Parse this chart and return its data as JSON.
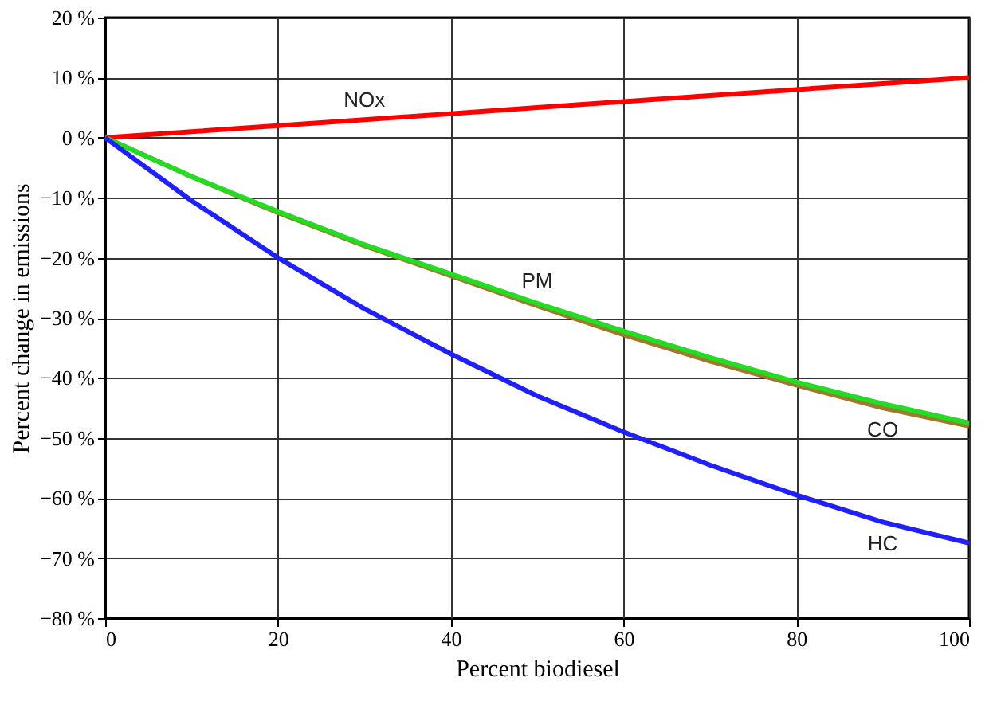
{
  "chart_data": {
    "type": "line",
    "xlabel": "Percent biodiesel",
    "ylabel": "Percent change in emissions",
    "x": [
      0,
      10,
      20,
      30,
      40,
      50,
      60,
      70,
      80,
      90,
      100
    ],
    "series": [
      {
        "name": "NOx",
        "color": "#ff0000",
        "values": [
          0,
          1,
          2,
          3,
          4,
          5,
          6,
          7,
          8,
          9,
          10
        ]
      },
      {
        "name": "CO",
        "color": "#a07830",
        "values": [
          0,
          -6.5,
          -12.5,
          -18,
          -23,
          -28,
          -32.8,
          -37.2,
          -41.2,
          -45,
          -48
        ]
      },
      {
        "name": "PM",
        "color": "#22dd22",
        "values": [
          0,
          -6.5,
          -12.3,
          -17.8,
          -22.7,
          -27.6,
          -32.2,
          -36.6,
          -40.7,
          -44.3,
          -47.5
        ]
      },
      {
        "name": "HC",
        "color": "#2020ff",
        "values": [
          0,
          -10.5,
          -20,
          -28.5,
          -36,
          -43,
          -49,
          -54.5,
          -59.5,
          -64,
          -67.5
        ]
      }
    ],
    "xlim": [
      0,
      100
    ],
    "xticks": [
      0,
      20,
      40,
      60,
      80,
      100
    ],
    "ylim": [
      -80,
      20
    ],
    "yticks": [
      {
        "value": 20,
        "label": "20 %"
      },
      {
        "value": 10,
        "label": "10 %"
      },
      {
        "value": 0,
        "label": "0 %"
      },
      {
        "value": -10,
        "label": "−10 %"
      },
      {
        "value": -20,
        "label": "−20 %"
      },
      {
        "value": -30,
        "label": "−30 %"
      },
      {
        "value": -40,
        "label": "−40 %"
      },
      {
        "value": -50,
        "label": "−50 %"
      },
      {
        "value": -60,
        "label": "−60 %"
      },
      {
        "value": -70,
        "label": "−70 %"
      },
      {
        "value": -80,
        "label": "−80 %"
      }
    ],
    "grid": true,
    "marker": "none",
    "line_style": "solid"
  }
}
